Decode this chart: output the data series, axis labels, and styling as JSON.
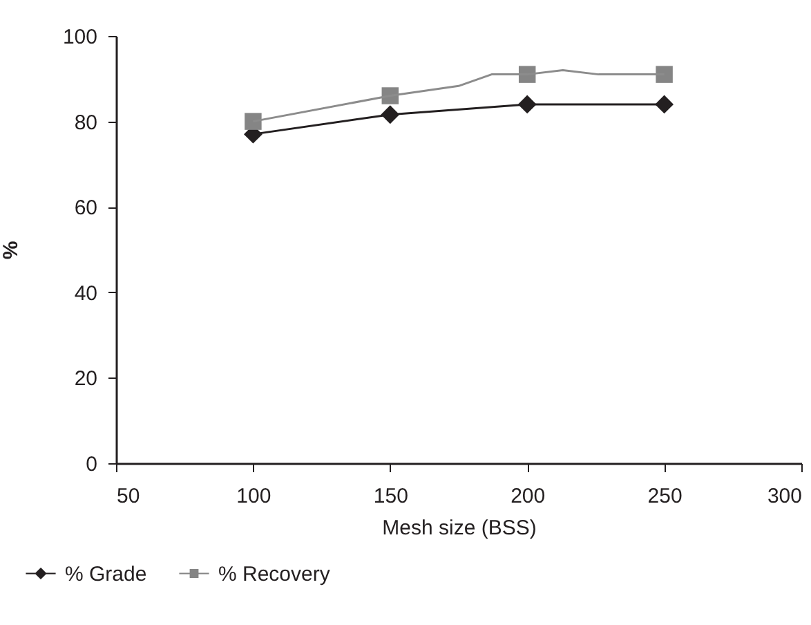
{
  "chart_data": {
    "type": "line",
    "xlabel": "Mesh size (BSS)",
    "ylabel": "%",
    "xlim": [
      50,
      300
    ],
    "xticks": [
      50,
      100,
      150,
      200,
      250,
      300
    ],
    "ylim": [
      0,
      100
    ],
    "yticks": [
      0,
      20,
      40,
      60,
      80,
      100
    ],
    "grid": false,
    "legend": "bottom left",
    "series": [
      {
        "name": "% Grade",
        "type": "line",
        "marker": "diamond",
        "color": "#231f20",
        "x": [
          100,
          150,
          200,
          250
        ],
        "values": [
          77,
          81.6,
          84,
          84
        ]
      },
      {
        "name": "% Recovery",
        "type": "scatter",
        "marker": "square",
        "color": "#858585",
        "x": [
          100,
          150,
          200,
          250
        ],
        "values": [
          80,
          86,
          91,
          91
        ]
      },
      {
        "type": "line",
        "color": "#8c8c8c",
        "x": [
          100,
          150,
          175,
          187,
          200,
          213,
          226,
          250
        ],
        "values": [
          80,
          86,
          88.3,
          91,
          91,
          92,
          91,
          91
        ]
      }
    ]
  }
}
